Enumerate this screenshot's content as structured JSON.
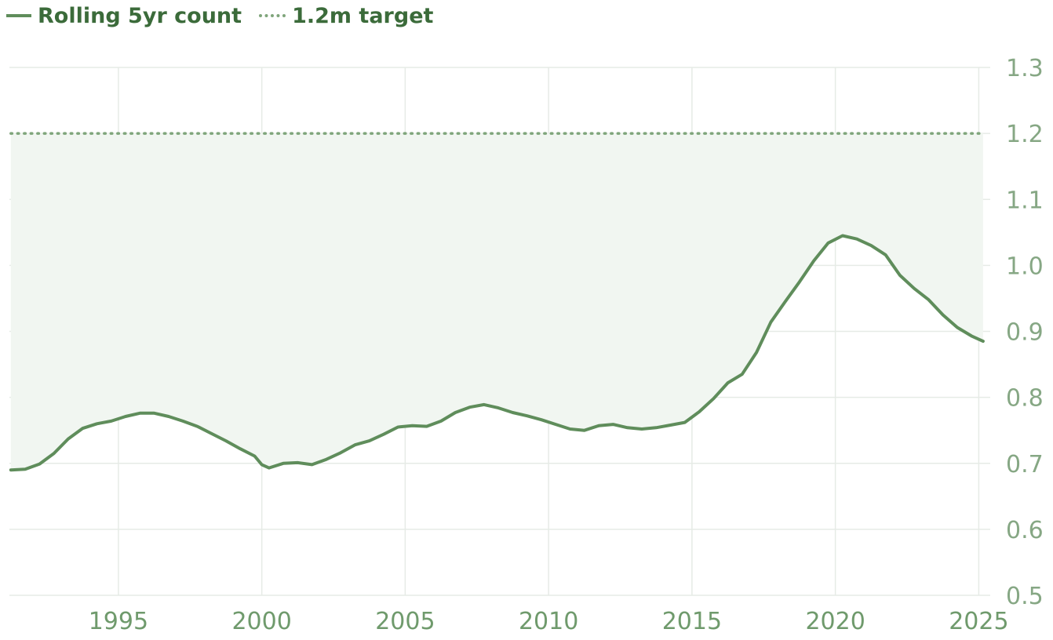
{
  "colors": {
    "series": "#5f8d5b",
    "target": "#7fa57b",
    "fill": "#f1f6f1",
    "grid": "#e6ebe6",
    "y_tick": "#86a784",
    "x_tick": "#6f9a6c",
    "legend_text": "#3b6b3a"
  },
  "legend": {
    "series_label": "Rolling 5yr count",
    "target_label": "1.2m target"
  },
  "chart_data": {
    "type": "line",
    "title": "",
    "xlabel": "",
    "ylabel": "",
    "xlim": [
      1991.2,
      2025.4
    ],
    "ylim": [
      0.5,
      1.3
    ],
    "y_axis_side": "right",
    "grid": true,
    "legend_position": "top-left",
    "x_ticks": [
      1995,
      2000,
      2005,
      2010,
      2015,
      2020,
      2025
    ],
    "x_tick_labels": [
      "1995",
      "2000",
      "2005",
      "2010",
      "2015",
      "2020",
      "2025"
    ],
    "y_ticks": [
      0.5,
      0.6,
      0.7,
      0.8,
      0.9,
      1.0,
      1.1,
      1.2,
      1.3
    ],
    "y_tick_labels": [
      "0.5",
      "0.6",
      "0.7",
      "0.8",
      "0.9",
      "1.0",
      "1.1",
      "1.2",
      "1.3"
    ],
    "target": {
      "name": "1.2m target",
      "value": 1.2,
      "style": "dotted",
      "shaded_gap": true
    },
    "series": [
      {
        "name": "Rolling 5yr count",
        "x": [
          1991.25,
          1991.75,
          1992.25,
          1992.75,
          1993.25,
          1993.75,
          1994.25,
          1994.75,
          1995.25,
          1995.75,
          1996.25,
          1996.75,
          1997.25,
          1997.75,
          1998.25,
          1998.75,
          1999.25,
          1999.75,
          2000.0,
          2000.25,
          2000.75,
          2001.25,
          2001.75,
          2002.25,
          2002.75,
          2003.25,
          2003.75,
          2004.25,
          2004.75,
          2005.25,
          2005.75,
          2006.25,
          2006.75,
          2007.25,
          2007.75,
          2008.25,
          2008.75,
          2009.25,
          2009.75,
          2010.25,
          2010.75,
          2011.25,
          2011.75,
          2012.25,
          2012.75,
          2013.25,
          2013.75,
          2014.25,
          2014.75,
          2015.25,
          2015.75,
          2016.25,
          2016.75,
          2017.25,
          2017.75,
          2018.25,
          2018.75,
          2019.25,
          2019.75,
          2020.25,
          2020.75,
          2021.25,
          2021.75,
          2022.25,
          2022.75,
          2023.25,
          2023.75,
          2024.25,
          2024.75,
          2025.15
        ],
        "values": [
          0.69,
          0.691,
          0.699,
          0.715,
          0.737,
          0.753,
          0.76,
          0.764,
          0.771,
          0.776,
          0.776,
          0.771,
          0.764,
          0.756,
          0.745,
          0.734,
          0.722,
          0.711,
          0.698,
          0.693,
          0.7,
          0.701,
          0.698,
          0.706,
          0.716,
          0.728,
          0.734,
          0.744,
          0.755,
          0.757,
          0.756,
          0.764,
          0.777,
          0.785,
          0.789,
          0.784,
          0.777,
          0.772,
          0.766,
          0.759,
          0.752,
          0.75,
          0.757,
          0.759,
          0.754,
          0.752,
          0.754,
          0.758,
          0.762,
          0.778,
          0.798,
          0.822,
          0.835,
          0.868,
          0.914,
          0.945,
          0.975,
          1.007,
          1.034,
          1.045,
          1.04,
          1.03,
          1.016,
          0.985,
          0.965,
          0.948,
          0.925,
          0.906,
          0.893,
          0.885
        ]
      }
    ]
  }
}
